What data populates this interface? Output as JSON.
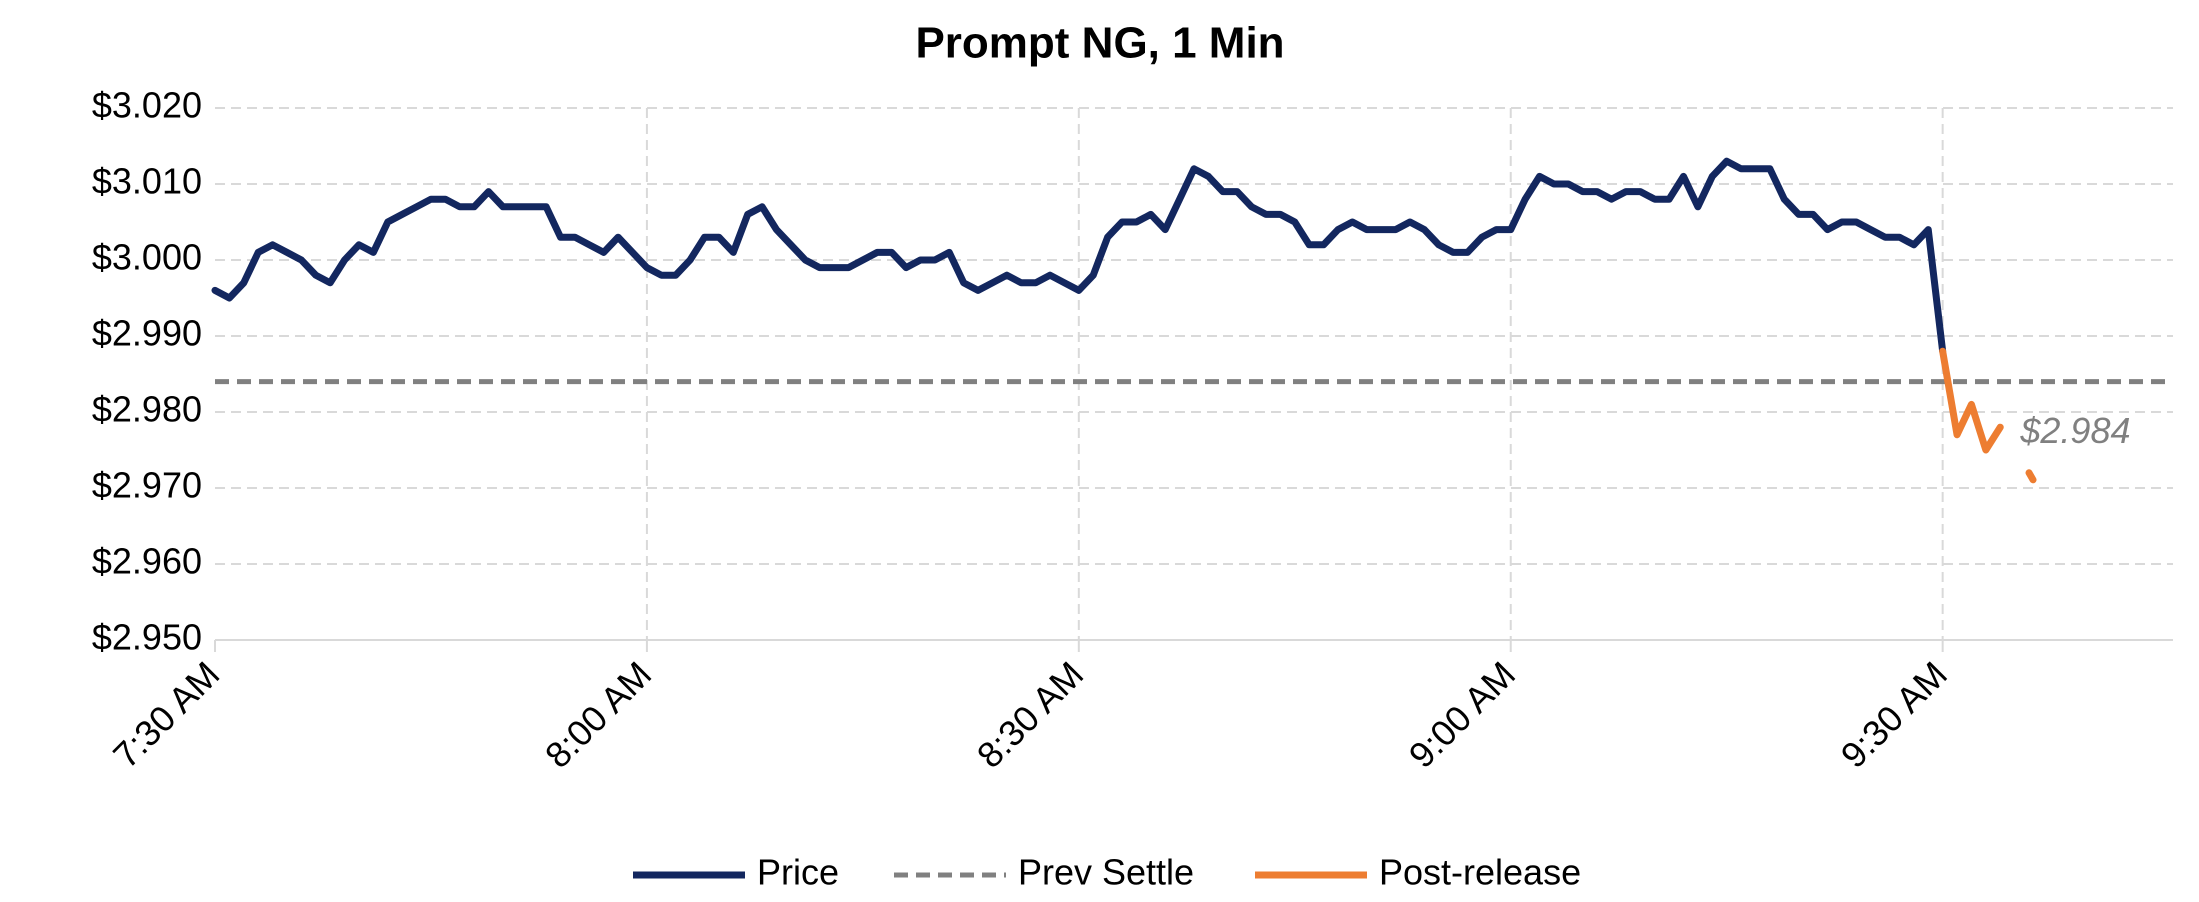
{
  "chart_data": {
    "type": "line",
    "title": "Prompt NG, 1 Min",
    "categories": [
      "7:30 AM",
      null,
      null,
      null,
      null,
      null,
      null,
      null,
      null,
      null,
      null,
      null,
      null,
      null,
      null,
      null,
      null,
      null,
      null,
      null,
      null,
      null,
      null,
      null,
      null,
      null,
      null,
      null,
      null,
      null,
      "8:00 AM",
      null,
      null,
      null,
      null,
      null,
      null,
      null,
      null,
      null,
      null,
      null,
      null,
      null,
      null,
      null,
      null,
      null,
      null,
      null,
      null,
      null,
      null,
      null,
      null,
      null,
      null,
      null,
      null,
      null,
      "8:30 AM",
      null,
      null,
      null,
      null,
      null,
      null,
      null,
      null,
      null,
      null,
      null,
      null,
      null,
      null,
      null,
      null,
      null,
      null,
      null,
      null,
      null,
      null,
      null,
      null,
      null,
      null,
      null,
      null,
      null,
      "9:00 AM",
      null,
      null,
      null,
      null,
      null,
      null,
      null,
      null,
      null,
      null,
      null,
      null,
      null,
      null,
      null,
      null,
      null,
      null,
      null,
      null,
      null,
      null,
      null,
      null,
      null,
      null,
      null,
      null,
      null,
      "9:30 AM",
      null,
      null,
      null,
      null,
      null,
      null,
      null,
      null,
      null,
      null,
      null,
      null,
      null,
      null,
      null,
      null
    ],
    "series": [
      {
        "name": "Price",
        "color": "#13275f",
        "values": [
          2.996,
          2.995,
          2.997,
          3.001,
          3.002,
          3.001,
          3.0,
          2.998,
          2.997,
          3.0,
          3.002,
          3.001,
          3.005,
          3.006,
          3.007,
          3.008,
          3.008,
          3.007,
          3.007,
          3.009,
          3.007,
          3.007,
          3.007,
          3.007,
          3.003,
          3.003,
          3.002,
          3.001,
          3.003,
          3.001,
          2.999,
          2.998,
          2.998,
          3.0,
          3.003,
          3.003,
          3.001,
          3.006,
          3.007,
          3.004,
          3.002,
          3.0,
          2.999,
          2.999,
          2.999,
          3.0,
          3.001,
          3.001,
          2.999,
          3.0,
          3.0,
          3.001,
          2.997,
          2.996,
          2.997,
          2.998,
          2.997,
          2.997,
          2.998,
          2.997,
          2.996,
          2.998,
          3.003,
          3.005,
          3.005,
          3.006,
          3.004,
          3.008,
          3.012,
          3.011,
          3.009,
          3.009,
          3.007,
          3.006,
          3.006,
          3.005,
          3.002,
          3.002,
          3.004,
          3.005,
          3.004,
          3.004,
          3.004,
          3.005,
          3.004,
          3.002,
          3.001,
          3.001,
          3.003,
          3.004,
          3.004,
          3.008,
          3.011,
          3.01,
          3.01,
          3.009,
          3.009,
          3.008,
          3.009,
          3.009,
          3.008,
          3.008,
          3.011,
          3.007,
          3.011,
          3.013,
          3.012,
          3.012,
          3.012,
          3.008,
          3.006,
          3.006,
          3.004,
          3.005,
          3.005,
          3.004,
          3.003,
          3.003,
          3.002,
          3.004,
          2.988,
          null,
          null,
          null,
          null,
          null,
          null,
          null,
          null,
          null,
          null,
          null,
          null,
          null,
          null,
          null,
          null
        ]
      },
      {
        "name": "Post-release",
        "color": "#ed7d31",
        "values": [
          null,
          null,
          null,
          null,
          null,
          null,
          null,
          null,
          null,
          null,
          null,
          null,
          null,
          null,
          null,
          null,
          null,
          null,
          null,
          null,
          null,
          null,
          null,
          null,
          null,
          null,
          null,
          null,
          null,
          null,
          null,
          null,
          null,
          null,
          null,
          null,
          null,
          null,
          null,
          null,
          null,
          null,
          null,
          null,
          null,
          null,
          null,
          null,
          null,
          null,
          null,
          null,
          null,
          null,
          null,
          null,
          null,
          null,
          null,
          null,
          null,
          null,
          null,
          null,
          null,
          null,
          null,
          null,
          null,
          null,
          null,
          null,
          null,
          null,
          null,
          null,
          null,
          null,
          null,
          null,
          null,
          null,
          null,
          null,
          null,
          null,
          null,
          null,
          null,
          null,
          null,
          null,
          null,
          null,
          null,
          null,
          null,
          null,
          null,
          null,
          null,
          null,
          null,
          null,
          null,
          null,
          null,
          null,
          null,
          null,
          null,
          null,
          null,
          null,
          null,
          null,
          null,
          null,
          null,
          null,
          2.988,
          2.977,
          2.981,
          2.975,
          2.978,
          null,
          2.972,
          null,
          null,
          null,
          null,
          null,
          null,
          null,
          null,
          null,
          null
        ]
      }
    ],
    "reference_line": {
      "name": "Prev Settle",
      "value": 2.984,
      "color": "#808080",
      "label": "$2.984"
    },
    "ylim": [
      2.95,
      3.02
    ],
    "yticks": [
      {
        "value": 2.95,
        "label": "$2.950"
      },
      {
        "value": 2.96,
        "label": "$2.960"
      },
      {
        "value": 2.97,
        "label": "$2.970"
      },
      {
        "value": 2.98,
        "label": "$2.980"
      },
      {
        "value": 2.99,
        "label": "$2.990"
      },
      {
        "value": 3.0,
        "label": "$3.000"
      },
      {
        "value": 3.01,
        "label": "$3.010"
      },
      {
        "value": 3.02,
        "label": "$3.020"
      }
    ],
    "grid": true,
    "legend": "bottom"
  }
}
